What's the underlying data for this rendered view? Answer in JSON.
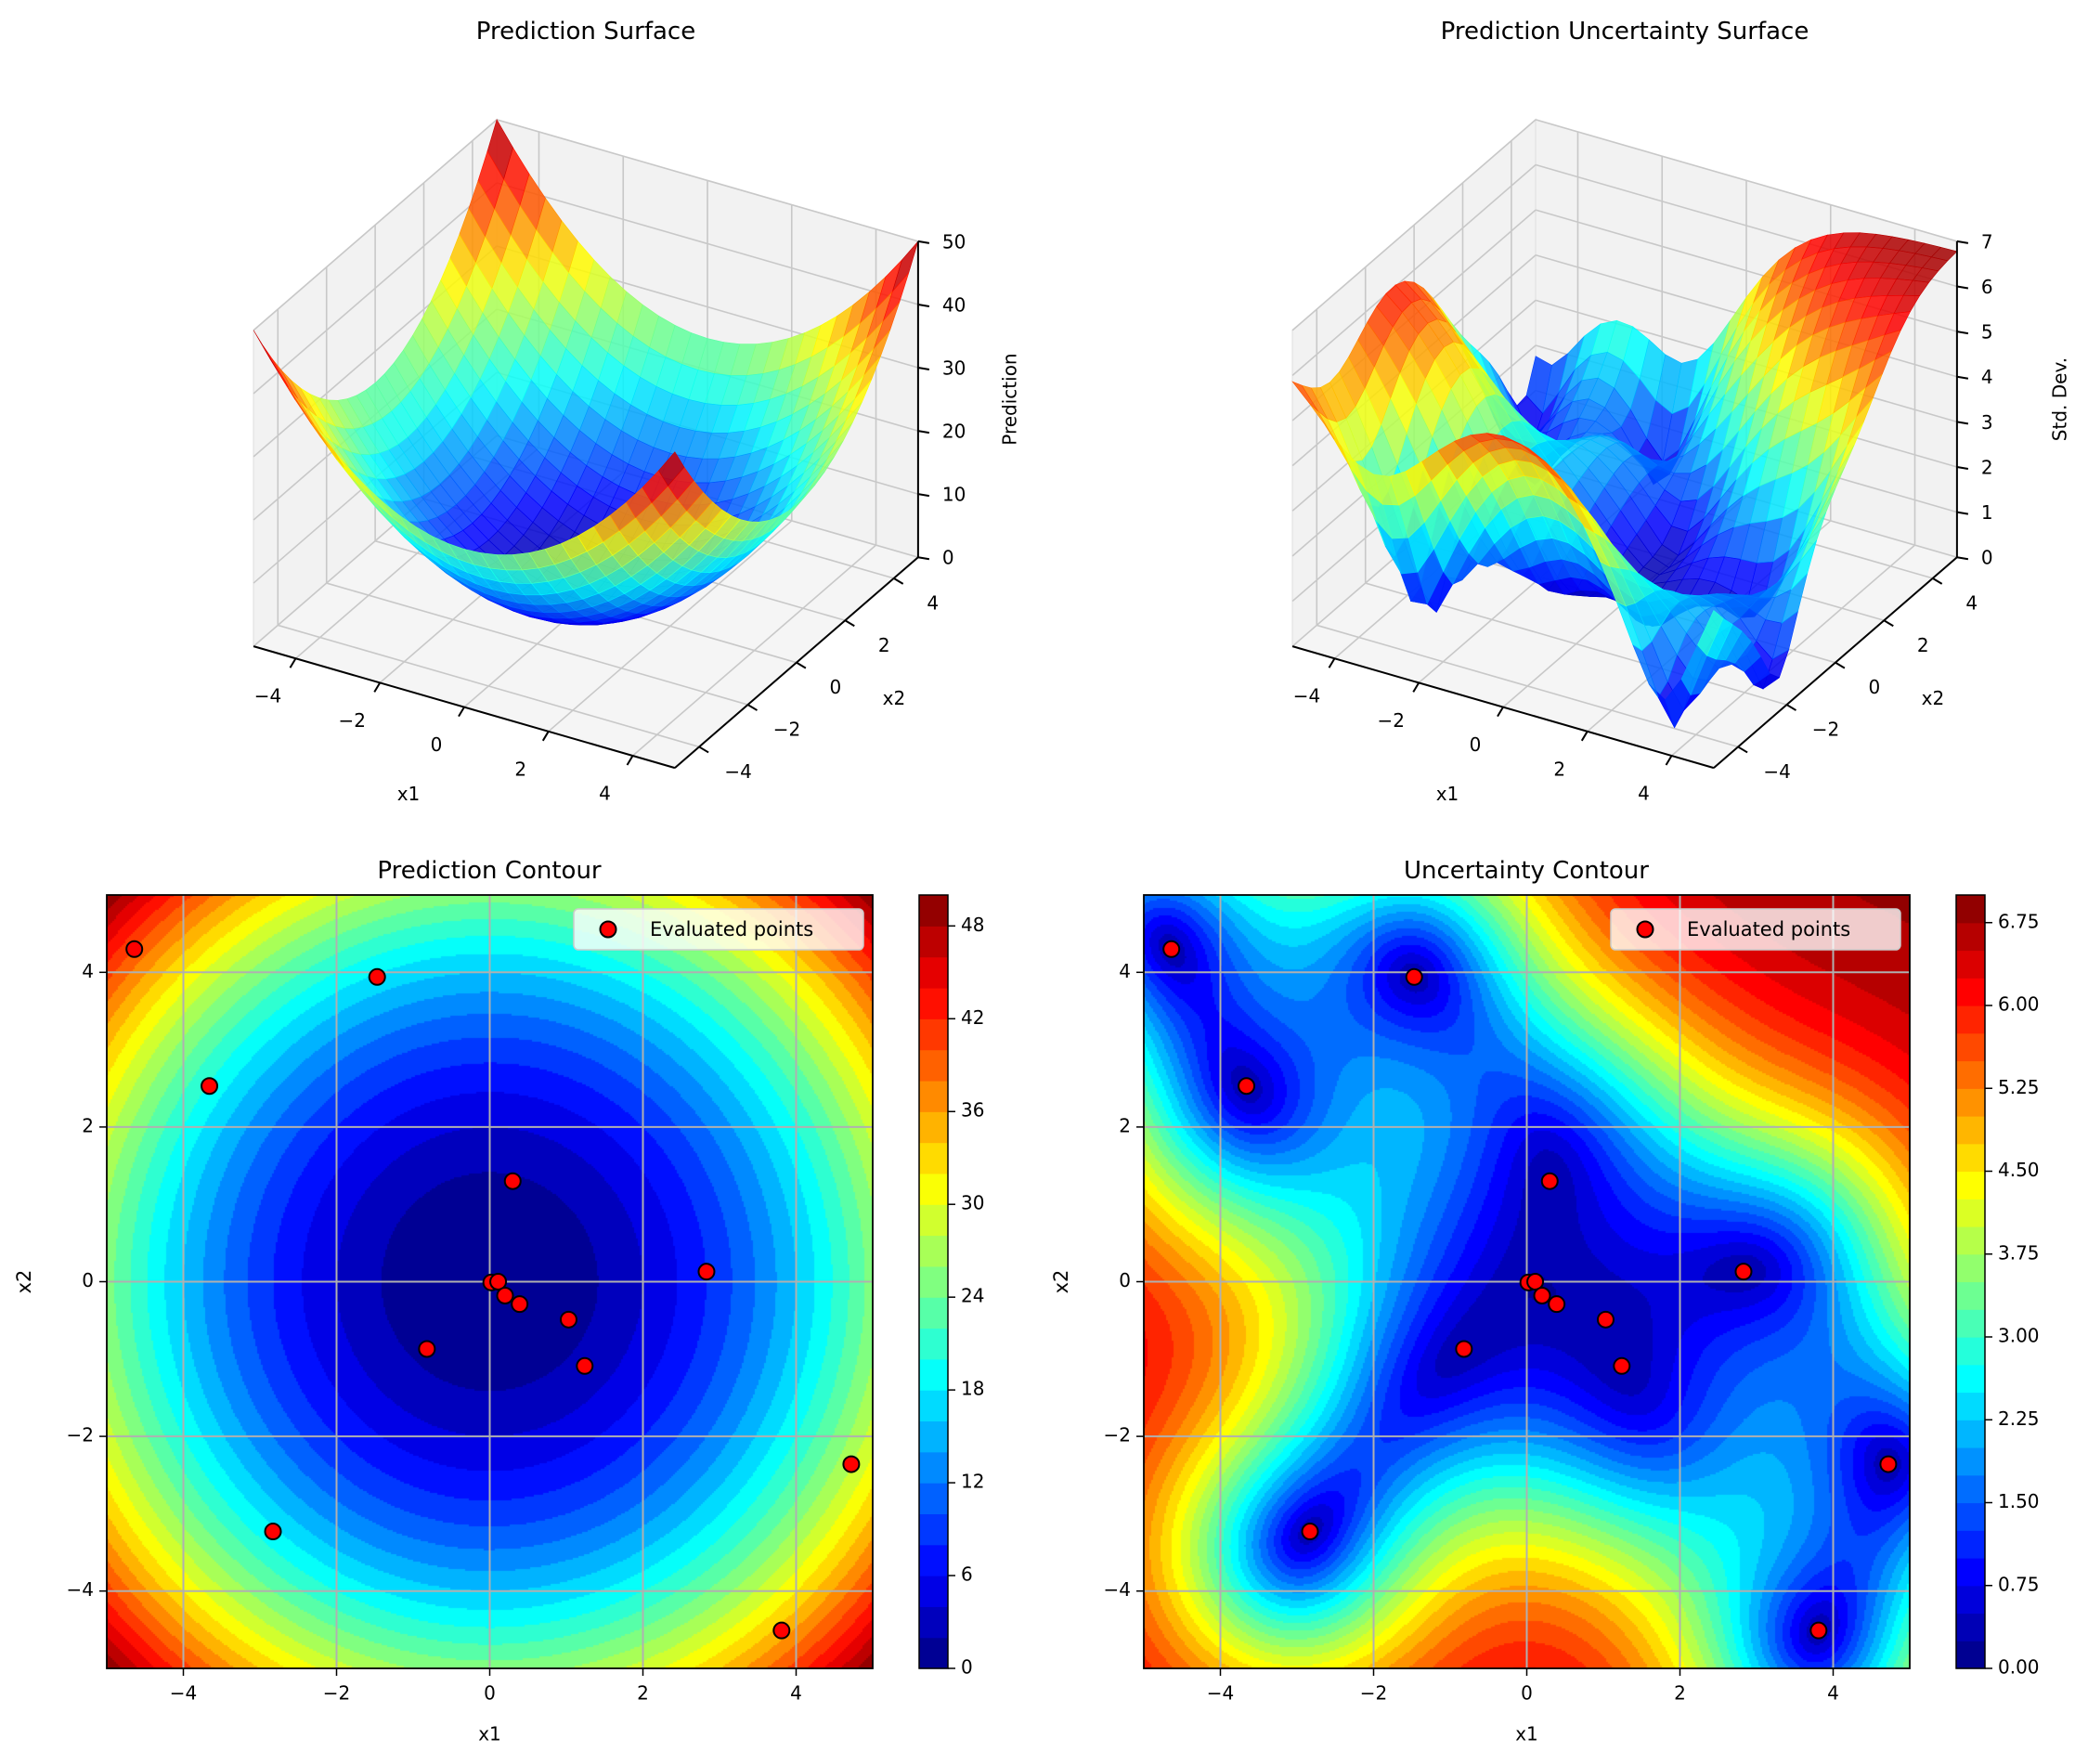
{
  "chart_data": [
    {
      "type": "surface3d",
      "title": "Prediction Surface",
      "xlabel": "x1",
      "ylabel": "x2",
      "zlabel": "Prediction",
      "xlim": [
        -5,
        5
      ],
      "ylim": [
        -5,
        5
      ],
      "zlim": [
        0,
        50
      ],
      "xticks": [
        -4,
        -2,
        0,
        2,
        4
      ],
      "yticks": [
        -4,
        -2,
        0,
        2,
        4
      ],
      "zticks": [
        0,
        10,
        20,
        30,
        40,
        50
      ],
      "colormap": "jet"
    },
    {
      "type": "surface3d",
      "title": "Prediction Uncertainty Surface",
      "xlabel": "x1",
      "ylabel": "x2",
      "zlabel": "Std. Dev.",
      "xlim": [
        -5,
        5
      ],
      "ylim": [
        -5,
        5
      ],
      "zlim": [
        0,
        7
      ],
      "xticks": [
        -4,
        -2,
        0,
        2,
        4
      ],
      "yticks": [
        -4,
        -2,
        0,
        2,
        4
      ],
      "zticks": [
        0,
        1,
        2,
        3,
        4,
        5,
        6,
        7
      ],
      "colormap": "jet"
    },
    {
      "type": "contour",
      "title": "Prediction Contour",
      "xlabel": "x1",
      "ylabel": "x2",
      "xlim": [
        -5,
        5
      ],
      "ylim": [
        -5,
        5
      ],
      "xticks": [
        -4,
        -2,
        0,
        2,
        4
      ],
      "yticks": [
        -4,
        -2,
        0,
        2,
        4
      ],
      "grid": true,
      "levels": {
        "min": 0,
        "max": 50,
        "step": 2
      },
      "colorbar_ticks": [
        "0",
        "6",
        "12",
        "18",
        "24",
        "30",
        "36",
        "42",
        "48"
      ],
      "colormap": "jet",
      "legend": "Evaluated points",
      "legend_position": "top-right",
      "scatter": {
        "x1": [
          -4.64,
          -1.47,
          -3.66,
          0.3,
          2.83,
          0.02,
          0.11,
          0.2,
          0.39,
          1.03,
          -0.82,
          1.24,
          4.72,
          -2.83,
          3.81
        ],
        "x2": [
          4.3,
          3.94,
          2.53,
          1.3,
          0.13,
          -0.01,
          0.0,
          -0.18,
          -0.29,
          -0.49,
          -0.87,
          -1.09,
          -2.36,
          -3.23,
          -4.51
        ],
        "color": "#ff0000",
        "edgecolor": "#000000"
      }
    },
    {
      "type": "contour",
      "title": "Uncertainty Contour",
      "xlabel": "x1",
      "ylabel": "x2",
      "xlim": [
        -5,
        5
      ],
      "ylim": [
        -5,
        5
      ],
      "xticks": [
        -4,
        -2,
        0,
        2,
        4
      ],
      "yticks": [
        -4,
        -2,
        0,
        2,
        4
      ],
      "grid": true,
      "levels": {
        "min": 0,
        "max": 7,
        "step": 0.25
      },
      "colorbar_ticks": [
        "0.00",
        "0.75",
        "1.50",
        "2.25",
        "3.00",
        "3.75",
        "4.50",
        "5.25",
        "6.00",
        "6.75"
      ],
      "colormap": "jet",
      "legend": "Evaluated points",
      "legend_position": "top-right",
      "scatter": {
        "x1": [
          -4.64,
          -1.47,
          -3.66,
          0.3,
          2.83,
          0.02,
          0.11,
          0.2,
          0.39,
          1.03,
          -0.82,
          1.24,
          4.72,
          -2.83,
          3.81
        ],
        "x2": [
          4.3,
          3.94,
          2.53,
          1.3,
          0.13,
          -0.01,
          0.0,
          -0.18,
          -0.29,
          -0.49,
          -0.87,
          -1.09,
          -2.36,
          -3.23,
          -4.51
        ],
        "color": "#ff0000",
        "edgecolor": "#000000"
      }
    }
  ]
}
